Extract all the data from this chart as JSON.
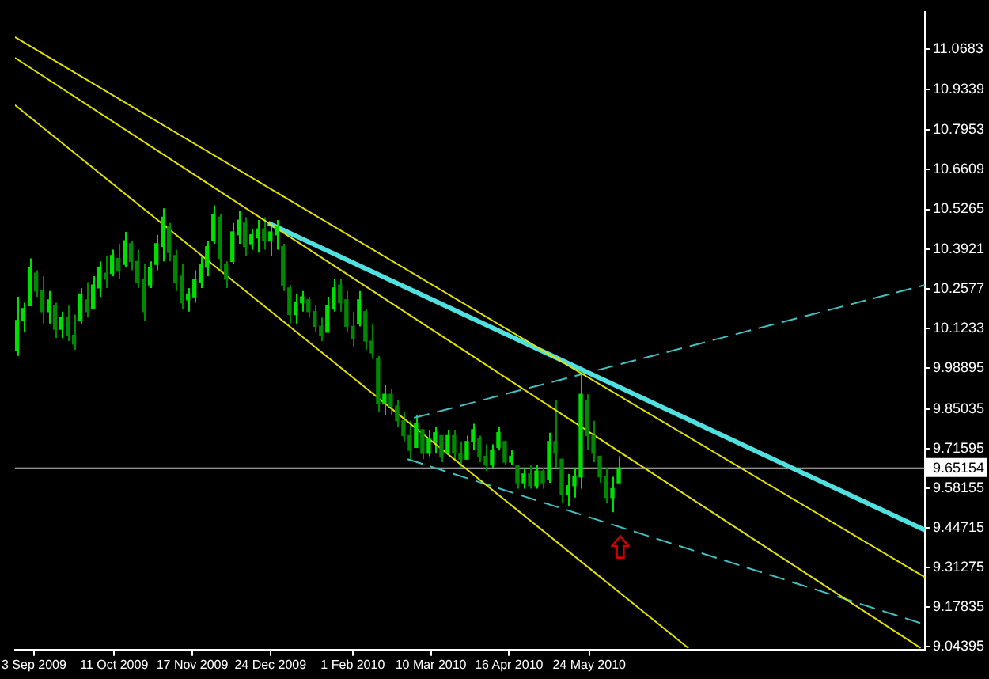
{
  "chart_data": {
    "type": "candlestick",
    "x": [
      "2009-08-26",
      "2009-08-29",
      "2009-09-01",
      "2009-09-04",
      "2009-09-07",
      "2009-09-10",
      "2009-09-13",
      "2009-09-16",
      "2009-09-19",
      "2009-09-22",
      "2009-09-25",
      "2009-09-28",
      "2009-10-01",
      "2009-10-04",
      "2009-10-07",
      "2009-10-10",
      "2009-10-13",
      "2009-10-16",
      "2009-10-19",
      "2009-10-22",
      "2009-10-25",
      "2009-10-28",
      "2009-10-31",
      "2009-11-03",
      "2009-11-06",
      "2009-11-09",
      "2009-11-12",
      "2009-11-15",
      "2009-11-18",
      "2009-11-21",
      "2009-11-24",
      "2009-11-27",
      "2009-11-30",
      "2009-12-03",
      "2009-12-06",
      "2009-12-09",
      "2009-12-12",
      "2009-12-15",
      "2009-12-18",
      "2009-12-21",
      "2009-12-24",
      "2009-12-27",
      "2009-12-30",
      "2010-01-02",
      "2010-01-05",
      "2010-01-08",
      "2010-01-11",
      "2010-01-14",
      "2010-01-17",
      "2010-01-20",
      "2010-01-23",
      "2010-01-26",
      "2010-01-29",
      "2010-02-01",
      "2010-02-04",
      "2010-02-07",
      "2010-02-10",
      "2010-02-13",
      "2010-02-16",
      "2010-02-19",
      "2010-02-22",
      "2010-02-25",
      "2010-02-28",
      "2010-03-03",
      "2010-03-06",
      "2010-03-09",
      "2010-03-12",
      "2010-03-15",
      "2010-03-18",
      "2010-03-21",
      "2010-03-24",
      "2010-03-27",
      "2010-03-30",
      "2010-04-02",
      "2010-04-05",
      "2010-04-08",
      "2010-04-11",
      "2010-04-14",
      "2010-04-17",
      "2010-04-20",
      "2010-04-23",
      "2010-04-26",
      "2010-04-29",
      "2010-05-02",
      "2010-05-05",
      "2010-05-08",
      "2010-05-11",
      "2010-05-14",
      "2010-05-17",
      "2010-05-20",
      "2010-05-23",
      "2010-05-26",
      "2010-05-29",
      "2010-06-01",
      "2010-06-04",
      "2010-06-07"
    ],
    "ohlc": [
      [
        10.05,
        10.23,
        10.03,
        10.15
      ],
      [
        10.15,
        10.21,
        10.11,
        10.19
      ],
      [
        10.2,
        10.36,
        10.2,
        10.33
      ],
      [
        10.31,
        10.32,
        10.23,
        10.25
      ],
      [
        10.25,
        10.3,
        10.14,
        10.18
      ],
      [
        10.18,
        10.25,
        10.14,
        10.22
      ],
      [
        10.2,
        10.21,
        10.09,
        10.12
      ],
      [
        10.12,
        10.18,
        10.09,
        10.16
      ],
      [
        10.16,
        10.2,
        10.08,
        10.1
      ],
      [
        10.1,
        10.17,
        10.05,
        10.07
      ],
      [
        10.15,
        10.26,
        10.14,
        10.24
      ],
      [
        10.22,
        10.28,
        10.16,
        10.18
      ],
      [
        10.19,
        10.3,
        10.19,
        10.27
      ],
      [
        10.26,
        10.35,
        10.23,
        10.33
      ],
      [
        10.31,
        10.37,
        10.26,
        10.29
      ],
      [
        10.31,
        10.39,
        10.3,
        10.37
      ],
      [
        10.36,
        10.41,
        10.29,
        10.32
      ],
      [
        10.34,
        10.45,
        10.33,
        10.42
      ],
      [
        10.41,
        10.42,
        10.32,
        10.35
      ],
      [
        10.35,
        10.39,
        10.26,
        10.28
      ],
      [
        10.29,
        10.34,
        10.15,
        10.18
      ],
      [
        10.27,
        10.35,
        10.26,
        10.33
      ],
      [
        10.34,
        10.44,
        10.32,
        10.41
      ],
      [
        10.4,
        10.53,
        10.35,
        10.5
      ],
      [
        10.47,
        10.48,
        10.35,
        10.38
      ],
      [
        10.37,
        10.39,
        10.25,
        10.28
      ],
      [
        10.3,
        10.34,
        10.19,
        10.21
      ],
      [
        10.22,
        10.26,
        10.18,
        10.24
      ],
      [
        10.23,
        10.32,
        10.21,
        10.29
      ],
      [
        10.28,
        10.37,
        10.26,
        10.34
      ],
      [
        10.33,
        10.42,
        10.3,
        10.4
      ],
      [
        10.42,
        10.54,
        10.41,
        10.51
      ],
      [
        10.5,
        10.51,
        10.32,
        10.36
      ],
      [
        10.34,
        10.35,
        10.26,
        10.29
      ],
      [
        10.35,
        10.48,
        10.34,
        10.45
      ],
      [
        10.44,
        10.52,
        10.41,
        10.49
      ],
      [
        10.48,
        10.5,
        10.37,
        10.4
      ],
      [
        10.41,
        10.46,
        10.39,
        10.44
      ],
      [
        10.43,
        10.49,
        10.38,
        10.46
      ],
      [
        10.46,
        10.5,
        10.39,
        10.42
      ],
      [
        10.42,
        10.48,
        10.37,
        10.45
      ],
      [
        10.44,
        10.49,
        10.39,
        10.47
      ],
      [
        10.4,
        10.41,
        10.25,
        10.27
      ],
      [
        10.26,
        10.27,
        10.14,
        10.17
      ],
      [
        10.17,
        10.24,
        10.14,
        10.21
      ],
      [
        10.21,
        10.25,
        10.18,
        10.23
      ],
      [
        10.22,
        10.23,
        10.16,
        10.18
      ],
      [
        10.18,
        10.2,
        10.11,
        10.13
      ],
      [
        10.13,
        10.16,
        10.08,
        10.1
      ],
      [
        10.11,
        10.23,
        10.11,
        10.2
      ],
      [
        10.19,
        10.29,
        10.18,
        10.26
      ],
      [
        10.27,
        10.29,
        10.18,
        10.21
      ],
      [
        10.22,
        10.25,
        10.11,
        10.13
      ],
      [
        10.13,
        10.18,
        10.06,
        10.09
      ],
      [
        10.14,
        10.25,
        10.13,
        10.22
      ],
      [
        10.18,
        10.19,
        10.05,
        10.08
      ],
      [
        10.08,
        10.14,
        10.02,
        10.04
      ],
      [
        10.02,
        10.03,
        9.84,
        9.87
      ],
      [
        9.87,
        9.93,
        9.83,
        9.9
      ],
      [
        9.9,
        9.92,
        9.83,
        9.86
      ],
      [
        9.86,
        9.88,
        9.79,
        9.81
      ],
      [
        9.81,
        9.84,
        9.74,
        9.76
      ],
      [
        9.76,
        9.81,
        9.68,
        9.71
      ],
      [
        9.72,
        9.83,
        9.72,
        9.8
      ],
      [
        9.78,
        9.78,
        9.68,
        9.7
      ],
      [
        9.7,
        9.78,
        9.69,
        9.75
      ],
      [
        9.74,
        9.79,
        9.7,
        9.77
      ],
      [
        9.76,
        9.76,
        9.67,
        9.69
      ],
      [
        9.7,
        9.78,
        9.7,
        9.76
      ],
      [
        9.76,
        9.78,
        9.68,
        9.7
      ],
      [
        9.7,
        9.74,
        9.65,
        9.68
      ],
      [
        9.68,
        9.76,
        9.68,
        9.74
      ],
      [
        9.74,
        9.8,
        9.71,
        9.78
      ],
      [
        9.75,
        9.76,
        9.67,
        9.69
      ],
      [
        9.69,
        9.73,
        9.64,
        9.66
      ],
      [
        9.66,
        9.73,
        9.65,
        9.71
      ],
      [
        9.72,
        9.79,
        9.71,
        9.77
      ],
      [
        9.74,
        9.74,
        9.66,
        9.67
      ],
      [
        9.67,
        9.71,
        9.66,
        9.69
      ],
      [
        9.66,
        9.66,
        9.58,
        9.6
      ],
      [
        9.6,
        9.65,
        9.58,
        9.63
      ],
      [
        9.63,
        9.66,
        9.58,
        9.59
      ],
      [
        9.59,
        9.66,
        9.58,
        9.64
      ],
      [
        9.64,
        9.65,
        9.58,
        9.6
      ],
      [
        9.61,
        9.77,
        9.6,
        9.74
      ],
      [
        9.74,
        9.88,
        9.65,
        9.7
      ],
      [
        9.68,
        9.68,
        9.53,
        9.56
      ],
      [
        9.56,
        9.63,
        9.52,
        9.59
      ],
      [
        9.59,
        9.65,
        9.55,
        9.62
      ],
      [
        9.62,
        9.97,
        9.58,
        9.9
      ],
      [
        9.88,
        9.9,
        9.71,
        9.76
      ],
      [
        9.76,
        9.81,
        9.67,
        9.7
      ],
      [
        9.69,
        9.69,
        9.6,
        9.62
      ],
      [
        9.62,
        9.65,
        9.53,
        9.55
      ],
      [
        9.55,
        9.62,
        9.5,
        9.58
      ],
      [
        9.6,
        9.69,
        9.6,
        9.65
      ]
    ],
    "colors": [
      "#00e000",
      "#00e000",
      "#00e000",
      "#008800",
      "#008800",
      "#00e000",
      "#008800",
      "#00e000",
      "#008800",
      "#008800",
      "#00e000",
      "#008800",
      "#00e000",
      "#00e000",
      "#008800",
      "#00e000",
      "#008800",
      "#00e000",
      "#008800",
      "#008800",
      "#008800",
      "#00e000",
      "#00e000",
      "#00e000",
      "#008800",
      "#008800",
      "#008800",
      "#00e000",
      "#00e000",
      "#00e000",
      "#00e000",
      "#00e000",
      "#008800",
      "#008800",
      "#00e000",
      "#00e000",
      "#008800",
      "#00e000",
      "#00e000",
      "#008800",
      "#00e000",
      "#00e000",
      "#008800",
      "#008800",
      "#00e000",
      "#00e000",
      "#008800",
      "#008800",
      "#008800",
      "#00e000",
      "#00e000",
      "#008800",
      "#008800",
      "#008800",
      "#00e000",
      "#008800",
      "#008800",
      "#008800",
      "#00e000",
      "#008800",
      "#008800",
      "#008800",
      "#008800",
      "#00e000",
      "#008800",
      "#00e000",
      "#00e000",
      "#008800",
      "#00e000",
      "#008800",
      "#008800",
      "#00e000",
      "#00e000",
      "#008800",
      "#008800",
      "#00e000",
      "#00e000",
      "#008800",
      "#00e000",
      "#008800",
      "#00e000",
      "#008800",
      "#00e000",
      "#008800",
      "#00e000",
      "#008800",
      "#008800",
      "#00e000",
      "#00e000",
      "#00e000",
      "#008800",
      "#008800",
      "#008800",
      "#008800",
      "#00e000",
      "#00e000"
    ],
    "series": [
      {
        "type": "line",
        "x": [
          "2009-08-25",
          "2010-10-30"
        ],
        "values": [
          11.11,
          9.28
        ],
        "color": "#e0e000"
      },
      {
        "type": "line",
        "x": [
          "2009-08-25",
          "2010-10-28"
        ],
        "values": [
          11.04,
          9.04
        ],
        "color": "#e0e000"
      },
      {
        "type": "line",
        "x": [
          "2009-08-25",
          "2010-07-10"
        ],
        "values": [
          10.88,
          9.04
        ],
        "color": "#e0e000"
      },
      {
        "type": "line",
        "x": [
          "2009-12-23",
          "2010-10-30"
        ],
        "values": [
          10.48,
          9.44
        ],
        "color": "#50e0e0"
      },
      {
        "type": "line",
        "x": [
          "2010-03-02",
          "2010-10-30"
        ],
        "values": [
          9.82,
          10.27
        ],
        "color": "#40c0c0",
        "line_style": "dashed"
      },
      {
        "type": "line",
        "x": [
          "2010-02-27",
          "2010-10-30"
        ],
        "values": [
          9.68,
          9.12
        ],
        "color": "#40c0c0",
        "line_style": "dashed"
      }
    ],
    "xlim": [
      "2009-08-25",
      "2010-10-30"
    ],
    "xticks": [
      {
        "value": "2009-09-03",
        "label": "3 Sep 2009"
      },
      {
        "value": "2009-10-11",
        "label": "11 Oct 2009"
      },
      {
        "value": "2009-11-17",
        "label": "17 Nov 2009"
      },
      {
        "value": "2009-12-24",
        "label": "24 Dec 2009"
      },
      {
        "value": "2010-02-01",
        "label": "1 Feb 2010"
      },
      {
        "value": "2010-03-10",
        "label": "10 Mar 2010"
      },
      {
        "value": "2010-04-16",
        "label": "16 Apr 2010"
      },
      {
        "value": "2010-05-24",
        "label": "24 May 2010"
      }
    ],
    "ylim": [
      9.035,
      11.196
    ],
    "yticks": [
      11.0683,
      10.9339,
      10.7953,
      10.6609,
      10.5265,
      10.3921,
      10.2577,
      10.1233,
      9.98895,
      9.85035,
      9.71595,
      9.58155,
      9.44715,
      9.31275,
      9.17835,
      9.04395
    ],
    "ref_lines": [
      {
        "axis": "y",
        "value": 9.65154,
        "label": "9.65154",
        "color": "#c0c0c0"
      }
    ]
  }
}
